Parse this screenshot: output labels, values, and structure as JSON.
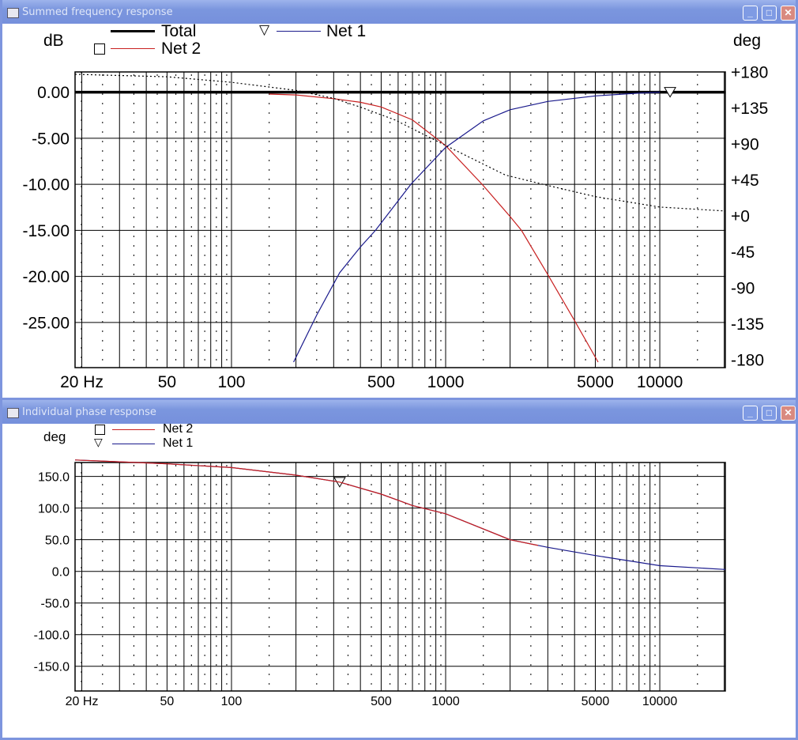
{
  "windows": [
    {
      "title": "Summed frequency response"
    },
    {
      "title": "Individual phase response"
    }
  ],
  "top": {
    "left_unit": "dB",
    "right_unit": "deg",
    "legend": {
      "total": "Total",
      "net1": "Net 1",
      "net2": "Net 2"
    }
  },
  "bottom": {
    "unit": "deg",
    "legend": {
      "net2": "Net 2",
      "net1": "Net 1"
    }
  },
  "colors": {
    "net1": "#1a1a8c",
    "net2": "#c82020",
    "total": "#000000",
    "title_bar": "#7b96de"
  },
  "chart_data": [
    {
      "type": "line",
      "title": "Summed frequency response",
      "xscale": "log",
      "xlim": [
        18.6,
        20230
      ],
      "ylim": [
        -29.9,
        2.2
      ],
      "y2lim": [
        -180,
        180
      ],
      "ylabel": "dB",
      "y2label": "deg",
      "xticks": [
        {
          "v": 20,
          "label": "20 Hz"
        },
        {
          "v": 50,
          "label": "50"
        },
        {
          "v": 100,
          "label": "100"
        },
        {
          "v": 500,
          "label": "500"
        },
        {
          "v": 1000,
          "label": "1000"
        },
        {
          "v": 5000,
          "label": "5000"
        },
        {
          "v": 10000,
          "label": "10000"
        }
      ],
      "yticks": [
        {
          "v": 0,
          "label": "0.00"
        },
        {
          "v": -5,
          "label": "-5.00"
        },
        {
          "v": -10,
          "label": "-10.00"
        },
        {
          "v": -15,
          "label": "-15.00"
        },
        {
          "v": -20,
          "label": "-20.00"
        },
        {
          "v": -25,
          "label": "-25.00"
        }
      ],
      "y2ticks": [
        {
          "v": 180,
          "label": "+180"
        },
        {
          "v": 135,
          "label": "+135"
        },
        {
          "v": 90,
          "label": "+90"
        },
        {
          "v": 45,
          "label": "+45"
        },
        {
          "v": 0,
          "label": "+0"
        },
        {
          "v": -45,
          "label": "-45"
        },
        {
          "v": -90,
          "label": "-90"
        },
        {
          "v": -135,
          "label": "-135"
        },
        {
          "v": -180,
          "label": "-180"
        }
      ],
      "series": [
        {
          "name": "Total",
          "axis": "y",
          "style": "thick",
          "color": "#000000",
          "points": [
            [
              18.6,
              0
            ],
            [
              20230,
              0
            ]
          ]
        },
        {
          "name": "Net 2",
          "axis": "y",
          "color": "#c82020",
          "marker": "square",
          "points": [
            [
              150,
              -0.2
            ],
            [
              200,
              -0.3
            ],
            [
              300,
              -0.7
            ],
            [
              400,
              -1.1
            ],
            [
              500,
              -1.6
            ],
            [
              700,
              -3.0
            ],
            [
              1000,
              -5.8
            ],
            [
              1480,
              -10
            ],
            [
              2000,
              -13.5
            ],
            [
              2260,
              -15
            ],
            [
              3000,
              -19.8
            ],
            [
              4000,
              -24.8
            ],
            [
              5150,
              -29.3
            ]
          ]
        },
        {
          "name": "Net 1",
          "axis": "y",
          "color": "#1a1a8c",
          "marker": "triangle",
          "marker_at": 11170,
          "points": [
            [
              195,
              -29.3
            ],
            [
              250,
              -24.2
            ],
            [
              320,
              -19.6
            ],
            [
              400,
              -16.8
            ],
            [
              470,
              -15
            ],
            [
              688,
              -10
            ],
            [
              1000,
              -6
            ],
            [
              1500,
              -3.1
            ],
            [
              2000,
              -1.9
            ],
            [
              3000,
              -1.0
            ],
            [
              5000,
              -0.4
            ],
            [
              8000,
              -0.1
            ],
            [
              10000,
              0
            ]
          ]
        },
        {
          "name": "Phase",
          "axis": "y2",
          "style": "dotted",
          "color": "#000000",
          "points": [
            [
              18.6,
              177
            ],
            [
              50,
              174
            ],
            [
              100,
              167
            ],
            [
              200,
              157
            ],
            [
              300,
              147
            ],
            [
              400,
              136
            ],
            [
              580,
              120
            ],
            [
              1000,
              88
            ],
            [
              1900,
              51
            ],
            [
              3000,
              38
            ],
            [
              5000,
              24
            ],
            [
              10000,
              11
            ],
            [
              20230,
              6
            ]
          ]
        }
      ]
    },
    {
      "type": "line",
      "title": "Individual phase response",
      "xscale": "log",
      "xlim": [
        18.6,
        20230
      ],
      "ylim": [
        -189,
        172
      ],
      "ylabel": "deg",
      "xticks": [
        {
          "v": 20,
          "label": "20 Hz"
        },
        {
          "v": 50,
          "label": "50"
        },
        {
          "v": 100,
          "label": "100"
        },
        {
          "v": 500,
          "label": "500"
        },
        {
          "v": 1000,
          "label": "1000"
        },
        {
          "v": 5000,
          "label": "5000"
        },
        {
          "v": 10000,
          "label": "10000"
        }
      ],
      "yticks": [
        {
          "v": 150,
          "label": "150.0"
        },
        {
          "v": 100,
          "label": "100.0"
        },
        {
          "v": 50,
          "label": "50.0"
        },
        {
          "v": 0,
          "label": "0.0"
        },
        {
          "v": -50,
          "label": "-50.0"
        },
        {
          "v": -100,
          "label": "-100.0"
        },
        {
          "v": -150,
          "label": "-150.0"
        }
      ],
      "series": [
        {
          "name": "Net 1",
          "axis": "y",
          "color": "#1a1a8c",
          "marker": "triangle",
          "marker_at": 320,
          "points": [
            [
              18.6,
              176
            ],
            [
              50,
              170
            ],
            [
              100,
              164
            ],
            [
              200,
              152
            ],
            [
              320,
              141
            ],
            [
              500,
              122
            ],
            [
              700,
              104
            ],
            [
              1000,
              91
            ],
            [
              2000,
              50
            ],
            [
              3000,
              38
            ],
            [
              5000,
              25
            ],
            [
              10000,
              9
            ],
            [
              20230,
              3
            ]
          ]
        },
        {
          "name": "Net 2",
          "axis": "y",
          "color": "#c82020",
          "marker": "square",
          "points": [
            [
              18.6,
              176
            ],
            [
              50,
              170
            ],
            [
              100,
              164
            ],
            [
              200,
              152
            ],
            [
              320,
              141
            ],
            [
              500,
              122
            ],
            [
              700,
              104
            ],
            [
              1000,
              91
            ],
            [
              2000,
              50
            ],
            [
              2700,
              41
            ]
          ]
        }
      ]
    }
  ]
}
